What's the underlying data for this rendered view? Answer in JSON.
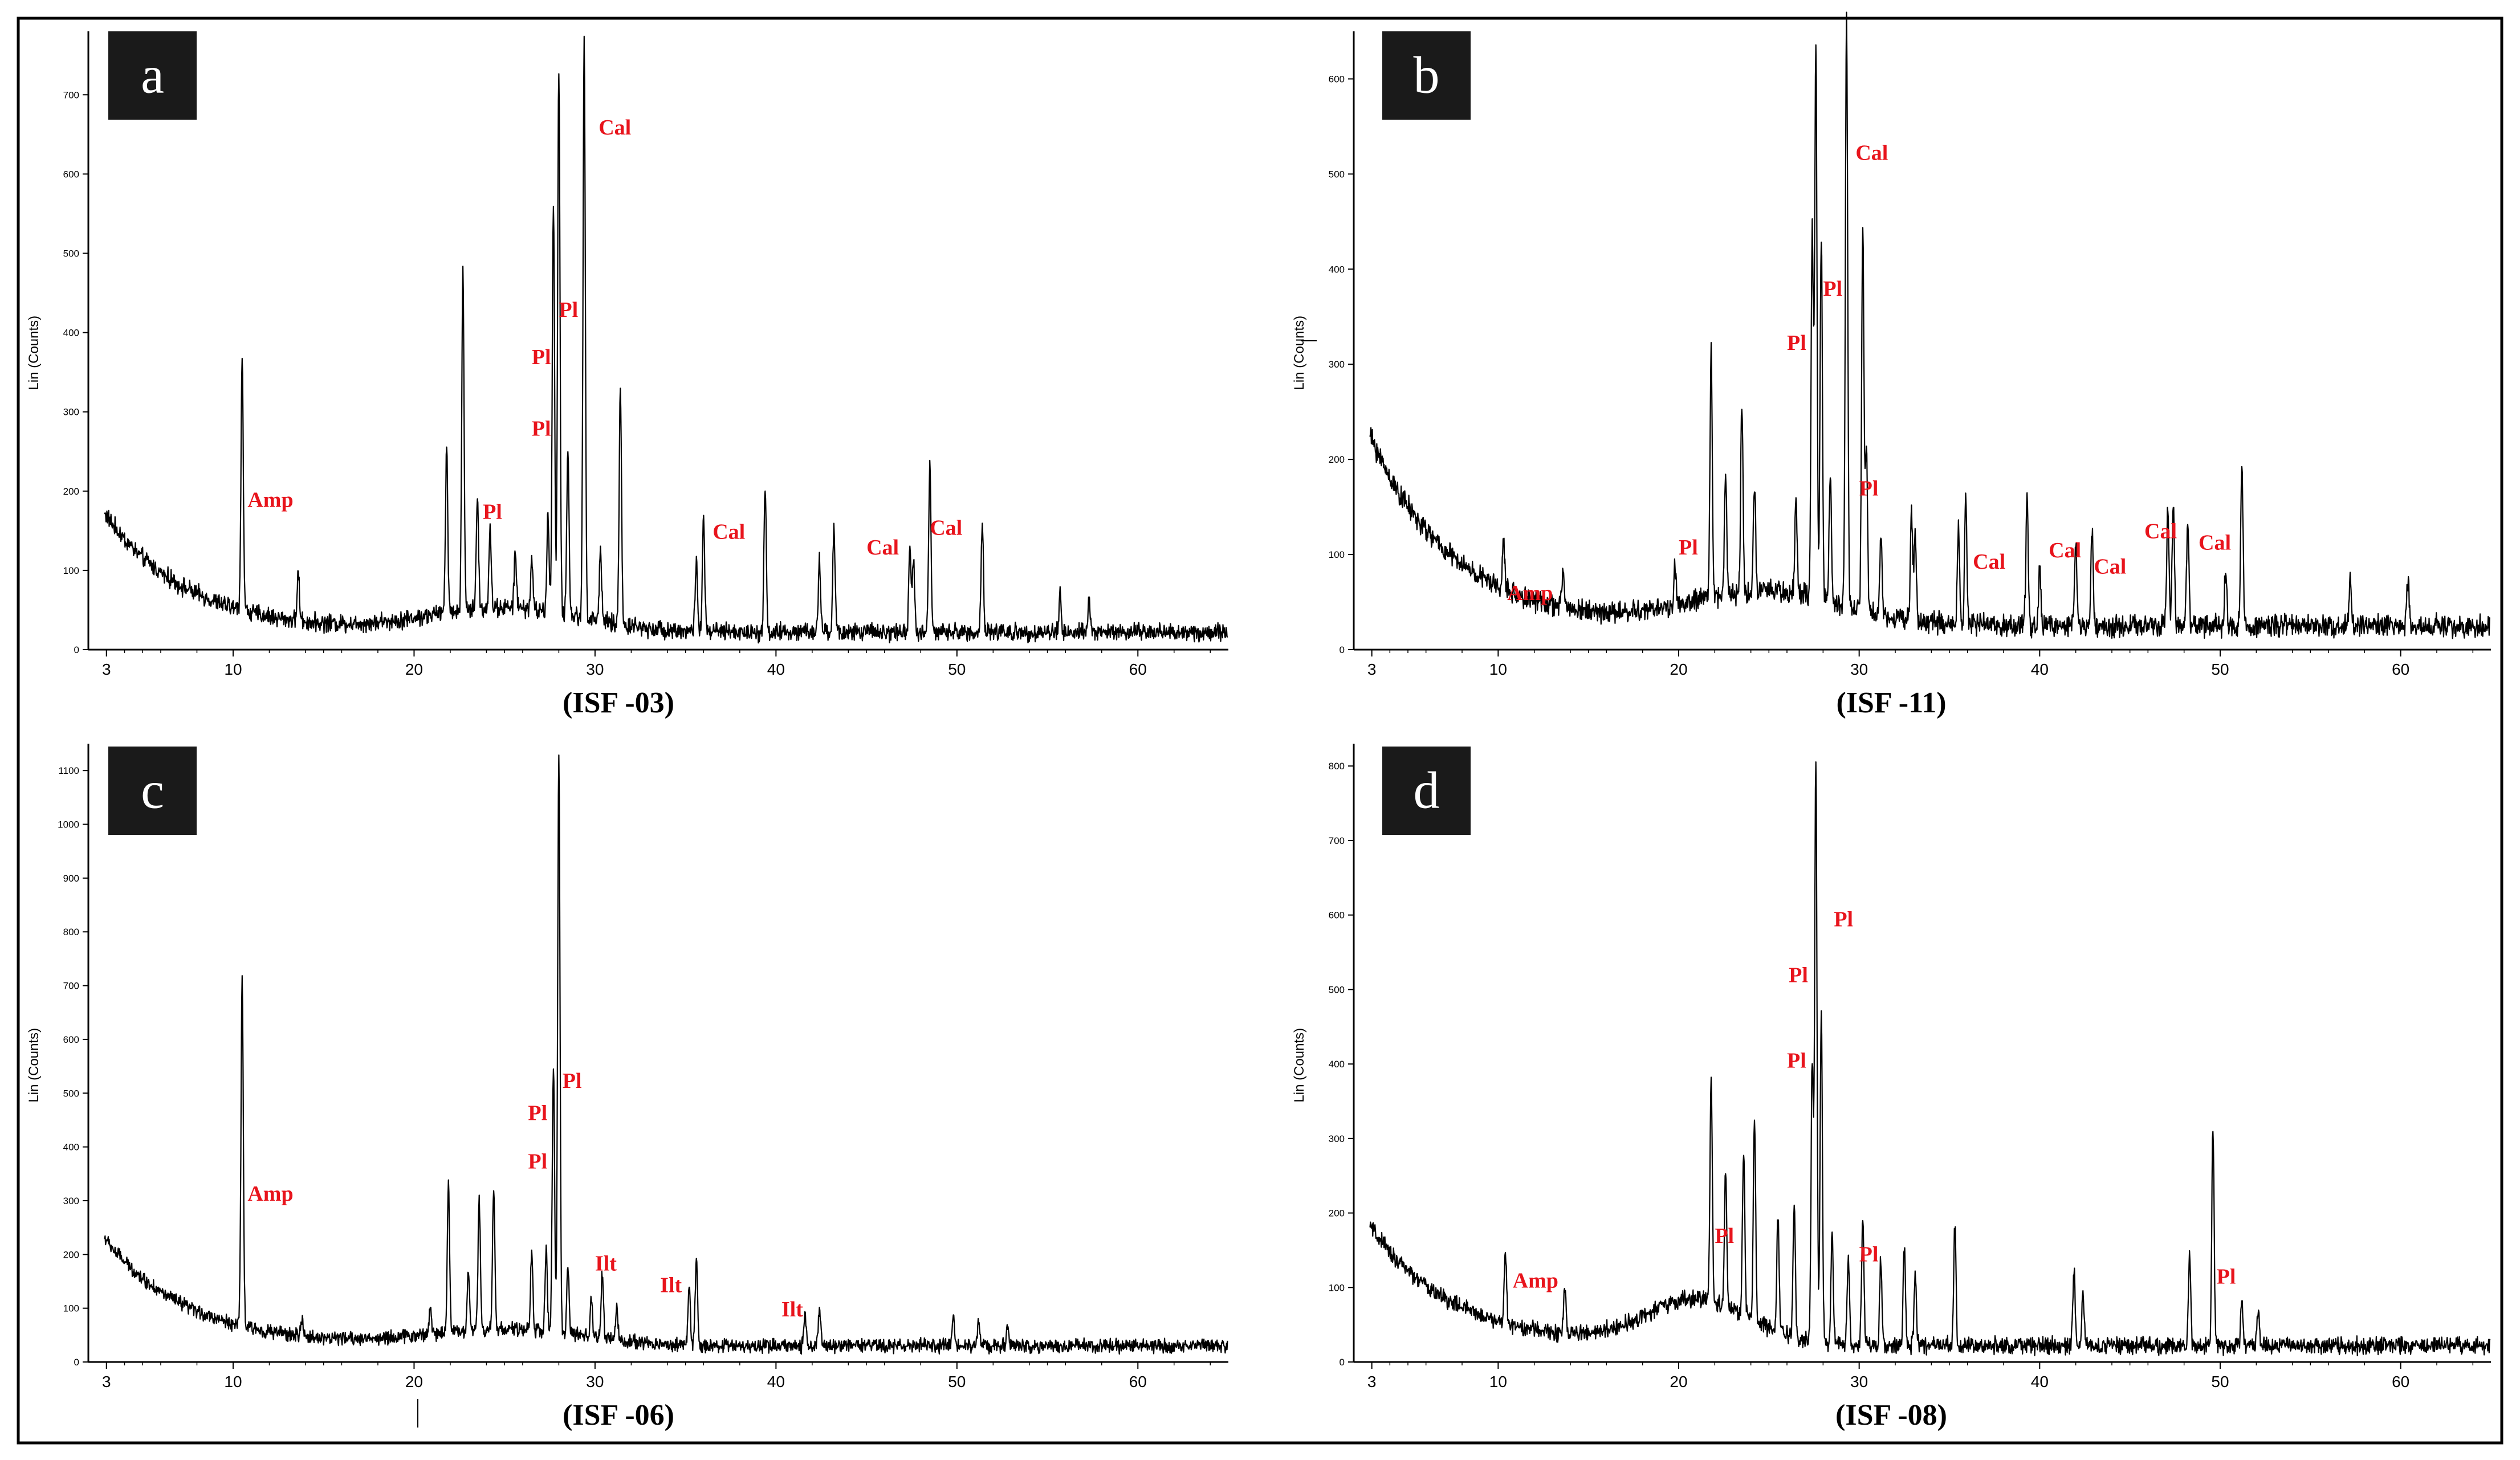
{
  "colors": {
    "trace": "#000000",
    "annotation": "#e8141c",
    "badge_bg": "#1a1a1a",
    "badge_fg": "#ffffff",
    "frame": "#000000"
  },
  "chart_data": [
    {
      "type": "line",
      "panel_label": "a",
      "caption": "(ISF -03)",
      "ylabel": "Lin (Counts)",
      "xlabel": "",
      "xlim": [
        2,
        65
      ],
      "ylim": [
        0,
        780
      ],
      "xticks": [
        3,
        10,
        20,
        30,
        40,
        50,
        60
      ],
      "yticks": [
        0,
        100,
        200,
        300,
        400,
        500,
        600,
        700
      ],
      "background": {
        "start": 150,
        "decay": 4.5,
        "hump_center": 25,
        "hump_amp": 30,
        "hump_width": 6,
        "base": 22,
        "noise": 14
      },
      "peaks": [
        [
          10.5,
          320
        ],
        [
          13.6,
          60
        ],
        [
          21.8,
          210
        ],
        [
          22.7,
          430
        ],
        [
          23.5,
          140
        ],
        [
          24.2,
          100
        ],
        [
          25.6,
          70
        ],
        [
          26.5,
          60
        ],
        [
          27.4,
          120
        ],
        [
          27.7,
          520
        ],
        [
          28.0,
          690
        ],
        [
          28.5,
          210
        ],
        [
          29.4,
          730
        ],
        [
          30.3,
          90
        ],
        [
          31.4,
          300
        ],
        [
          35.6,
          90
        ],
        [
          36.0,
          140
        ],
        [
          39.4,
          180
        ],
        [
          42.4,
          90
        ],
        [
          43.2,
          130
        ],
        [
          47.4,
          100
        ],
        [
          47.6,
          90
        ],
        [
          48.5,
          210
        ],
        [
          51.4,
          140
        ],
        [
          55.7,
          50
        ],
        [
          57.3,
          40
        ]
      ],
      "annotations": [
        {
          "text": "Amp",
          "x": 10.8,
          "y": 180
        },
        {
          "text": "Pl",
          "x": 23.8,
          "y": 165
        },
        {
          "text": "Pl",
          "x": 26.5,
          "y": 270
        },
        {
          "text": "Pl",
          "x": 26.5,
          "y": 360
        },
        {
          "text": "Pl",
          "x": 28.0,
          "y": 420
        },
        {
          "text": "Cal",
          "x": 30.2,
          "y": 650
        },
        {
          "text": "Cal",
          "x": 36.5,
          "y": 140
        },
        {
          "text": "Cal",
          "x": 45.0,
          "y": 120
        },
        {
          "text": "Cal",
          "x": 48.5,
          "y": 145
        }
      ]
    },
    {
      "type": "line",
      "panel_label": "b",
      "caption": "(ISF -11)",
      "ylabel": "Lin (Counts)",
      "xlabel": "",
      "xlim": [
        2,
        65
      ],
      "ylim": [
        0,
        650
      ],
      "xticks": [
        3,
        10,
        20,
        30,
        40,
        50,
        60
      ],
      "yticks": [
        0,
        100,
        200,
        300,
        400,
        500,
        600
      ],
      "background": {
        "start": 200,
        "decay": 4.5,
        "hump_center": 25,
        "hump_amp": 35,
        "hump_width": 6,
        "base": 25,
        "noise": 14
      },
      "peaks": [
        [
          10.3,
          50
        ],
        [
          13.6,
          40
        ],
        [
          19.8,
          40
        ],
        [
          21.8,
          260
        ],
        [
          22.6,
          130
        ],
        [
          23.5,
          200
        ],
        [
          24.2,
          110
        ],
        [
          26.5,
          100
        ],
        [
          27.4,
          380
        ],
        [
          27.6,
          580
        ],
        [
          27.9,
          380
        ],
        [
          28.4,
          130
        ],
        [
          29.3,
          620
        ],
        [
          30.2,
          400
        ],
        [
          30.4,
          170
        ],
        [
          31.2,
          80
        ],
        [
          32.9,
          110
        ],
        [
          33.1,
          90
        ],
        [
          35.5,
          100
        ],
        [
          35.9,
          130
        ],
        [
          39.3,
          140
        ],
        [
          40.0,
          60
        ],
        [
          42.0,
          90
        ],
        [
          42.9,
          100
        ],
        [
          47.1,
          120
        ],
        [
          47.4,
          130
        ],
        [
          48.2,
          110
        ],
        [
          50.3,
          60
        ],
        [
          51.2,
          170
        ],
        [
          57.2,
          50
        ],
        [
          60.4,
          50
        ]
      ],
      "annotations": [
        {
          "text": "Amp",
          "x": 10.5,
          "y": 52
        },
        {
          "text": "Pl",
          "x": 20.0,
          "y": 100
        },
        {
          "text": "Pl",
          "x": 26.0,
          "y": 315
        },
        {
          "text": "Pl",
          "x": 28.0,
          "y": 372
        },
        {
          "text": "Pl",
          "x": 30.0,
          "y": 162
        },
        {
          "text": "Cal",
          "x": 29.8,
          "y": 515
        },
        {
          "text": "Cal",
          "x": 36.3,
          "y": 85
        },
        {
          "text": "Cal",
          "x": 40.5,
          "y": 97
        },
        {
          "text": "Cal",
          "x": 43.0,
          "y": 80
        },
        {
          "text": "Cal",
          "x": 45.8,
          "y": 117
        },
        {
          "text": "Cal",
          "x": 48.8,
          "y": 105
        }
      ]
    },
    {
      "type": "line",
      "panel_label": "c",
      "caption": "(ISF -06)",
      "ylabel": "Lin (Counts)",
      "xlabel": "",
      "xlim": [
        2,
        65
      ],
      "ylim": [
        0,
        1150
      ],
      "xticks": [
        3,
        10,
        20,
        30,
        40,
        50,
        60
      ],
      "yticks": [
        0,
        100,
        200,
        300,
        400,
        500,
        600,
        700,
        800,
        900,
        1000,
        1100
      ],
      "background": {
        "start": 200,
        "decay": 4.5,
        "hump_center": 25,
        "hump_amp": 30,
        "hump_width": 6,
        "base": 30,
        "noise": 16
      },
      "peaks": [
        [
          10.5,
          650
        ],
        [
          13.8,
          30
        ],
        [
          20.9,
          50
        ],
        [
          21.9,
          280
        ],
        [
          23.0,
          110
        ],
        [
          23.6,
          240
        ],
        [
          24.4,
          260
        ],
        [
          26.5,
          140
        ],
        [
          27.3,
          150
        ],
        [
          27.7,
          500
        ],
        [
          28.0,
          1070
        ],
        [
          28.5,
          120
        ],
        [
          29.8,
          70
        ],
        [
          30.4,
          120
        ],
        [
          31.2,
          60
        ],
        [
          35.2,
          110
        ],
        [
          35.6,
          160
        ],
        [
          41.6,
          60
        ],
        [
          42.4,
          70
        ],
        [
          49.8,
          60
        ],
        [
          51.2,
          50
        ],
        [
          52.8,
          40
        ]
      ],
      "annotations": [
        {
          "text": "Amp",
          "x": 10.8,
          "y": 300
        },
        {
          "text": "Pl",
          "x": 26.3,
          "y": 360
        },
        {
          "text": "Pl",
          "x": 26.3,
          "y": 450
        },
        {
          "text": "Pl",
          "x": 28.2,
          "y": 510
        },
        {
          "text": "Ilt",
          "x": 30.0,
          "y": 170
        },
        {
          "text": "Ilt",
          "x": 33.6,
          "y": 130
        },
        {
          "text": "Ilt",
          "x": 40.3,
          "y": 85
        }
      ]
    },
    {
      "type": "line",
      "panel_label": "d",
      "caption": "(ISF -08)",
      "ylabel": "Lin (Counts)",
      "xlabel": "",
      "xlim": [
        2,
        65
      ],
      "ylim": [
        0,
        830
      ],
      "xticks": [
        3,
        10,
        20,
        30,
        40,
        50,
        60
      ],
      "yticks": [
        0,
        100,
        200,
        300,
        400,
        500,
        600,
        700,
        800
      ],
      "background": {
        "start": 160,
        "decay": 4.5,
        "hump_center": 21,
        "hump_amp": 60,
        "hump_width": 4,
        "base": 22,
        "noise": 14
      },
      "peaks": [
        [
          10.4,
          95
        ],
        [
          13.7,
          60
        ],
        [
          21.8,
          300
        ],
        [
          22.6,
          180
        ],
        [
          23.6,
          220
        ],
        [
          24.2,
          270
        ],
        [
          25.5,
          160
        ],
        [
          26.4,
          180
        ],
        [
          27.4,
          380
        ],
        [
          27.6,
          780
        ],
        [
          27.9,
          440
        ],
        [
          28.5,
          150
        ],
        [
          29.4,
          120
        ],
        [
          30.2,
          170
        ],
        [
          31.2,
          120
        ],
        [
          32.5,
          130
        ],
        [
          33.1,
          90
        ],
        [
          35.3,
          160
        ],
        [
          41.9,
          100
        ],
        [
          42.4,
          70
        ],
        [
          48.3,
          120
        ],
        [
          49.6,
          300
        ],
        [
          51.2,
          60
        ],
        [
          52.1,
          50
        ]
      ],
      "annotations": [
        {
          "text": "Amp",
          "x": 10.8,
          "y": 100
        },
        {
          "text": "Pl",
          "x": 22.0,
          "y": 160
        },
        {
          "text": "Pl",
          "x": 26.0,
          "y": 395
        },
        {
          "text": "Pl",
          "x": 26.1,
          "y": 510
        },
        {
          "text": "Pl",
          "x": 28.6,
          "y": 585
        },
        {
          "text": "Pl",
          "x": 30.0,
          "y": 135
        },
        {
          "text": "Pl",
          "x": 49.8,
          "y": 105
        }
      ]
    }
  ]
}
